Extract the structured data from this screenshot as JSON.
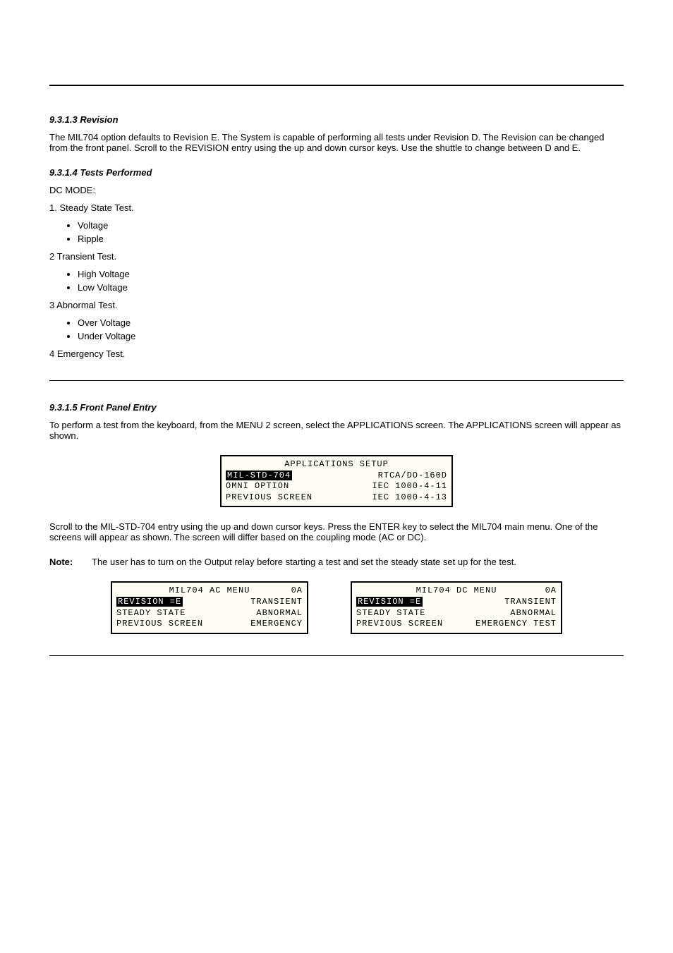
{
  "hr1": true,
  "section1": {
    "title": "9.3.1.3  Revision",
    "intro": "The MIL704 option defaults to Revision E. The System is capable of performing all tests under Revision D. The Revision can be changed from the front panel. Scroll to the REVISION entry using the up and down cursor keys. Use the shuttle to change between D and E."
  },
  "section2": {
    "title": "9.3.1.4  Tests Performed",
    "dc_label": "DC MODE:",
    "items": [
      {
        "label": "1.  Steady State Test.",
        "subs": [
          "Voltage",
          "Ripple"
        ]
      },
      {
        "label": "2  Transient Test.",
        "subs": [
          "High Voltage",
          "Low Voltage"
        ]
      },
      {
        "label": "3  Abnormal Test.",
        "subs": [
          "Over Voltage",
          "Under Voltage"
        ]
      },
      {
        "label": "4  Emergency Test.",
        "subs": []
      }
    ]
  },
  "section3": {
    "title": "9.3.1.5  Front Panel Entry",
    "para1_prefix": "To perform a test from the keyboard, from the MENU 2 screen, select the APPLICATIONS screen. The APPLICATIONS screen will appear as shown.",
    "para2": "Scroll to the MIL-STD-704 entry using the up and down cursor keys. Press the ENTER key to select the MIL704 main menu. One of the screens will appear as shown. The screen will differ based on the coupling mode (AC or DC).",
    "note_label": "Note:",
    "note_text": "The user has to turn on the Output relay before starting a test and set the steady state set up for the test."
  },
  "lcd_app": {
    "title": "APPLICATIONS SETUP",
    "rows": [
      {
        "left": "MIL-STD-704",
        "right": "RTCA/DO-160D",
        "left_inverted": true
      },
      {
        "left": "OMNI OPTION",
        "right": "IEC 1000-4-11",
        "left_inverted": false
      },
      {
        "left": "PREVIOUS SCREEN",
        "right": "IEC 1000-4-13",
        "left_inverted": false
      }
    ]
  },
  "lcd_ac": {
    "title": "MIL704 AC MENU",
    "title_right": "0A",
    "rows": [
      {
        "left": "REVISION =E",
        "right": "TRANSIENT",
        "left_inverted": true
      },
      {
        "left": "STEADY STATE",
        "right": "ABNORMAL",
        "left_inverted": false
      },
      {
        "left": "PREVIOUS SCREEN",
        "right": "EMERGENCY",
        "left_inverted": false
      }
    ]
  },
  "lcd_dc": {
    "title": "MIL704 DC MENU",
    "title_right": "0A",
    "rows": [
      {
        "left": "REVISION =E",
        "right": "TRANSIENT",
        "left_inverted": true
      },
      {
        "left": "STEADY STATE",
        "right": "ABNORMAL",
        "left_inverted": false
      },
      {
        "left": "PREVIOUS SCREEN",
        "right": "EMERGENCY TEST",
        "left_inverted": false
      }
    ]
  }
}
